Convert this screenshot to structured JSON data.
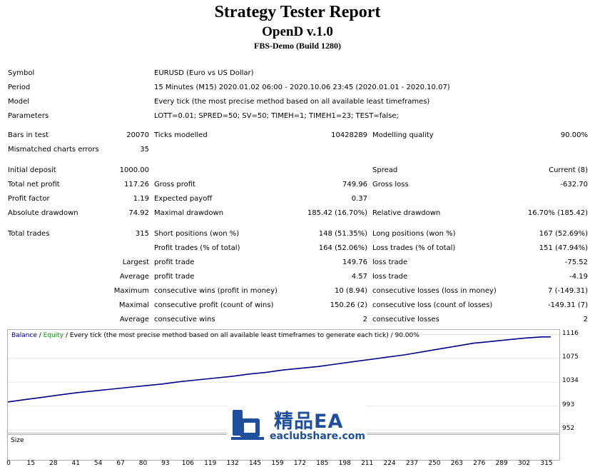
{
  "header": {
    "title": "Strategy Tester Report",
    "ea_name": "OpenD v.1.0",
    "build": "FBS-Demo (Build 1280)"
  },
  "info": {
    "symbol_label": "Symbol",
    "symbol_value": "EURUSD (Euro vs US Dollar)",
    "period_label": "Period",
    "period_value": "15 Minutes (M15) 2020.01.02 06:00 - 2020.10.06 23:45 (2020.01.01 - 2020.10.07)",
    "model_label": "Model",
    "model_value": "Every tick (the most precise method based on all available least timeframes)",
    "params_label": "Parameters",
    "params_value": "LOTT=0.01; SPRED=50; SV=50; TIMEH=1; TIMEH1=23; TEST=false;"
  },
  "stats": {
    "bars_label": "Bars in test",
    "bars_value": "20070",
    "ticks_label": "Ticks modelled",
    "ticks_value": "10428289",
    "quality_label": "Modelling quality",
    "quality_value": "90.00%",
    "mismatch_label": "Mismatched charts errors",
    "mismatch_value": "35",
    "deposit_label": "Initial deposit",
    "deposit_value": "1000.00",
    "spread_label": "Spread",
    "spread_value": "Current (8)",
    "netprofit_label": "Total net profit",
    "netprofit_value": "117.26",
    "grossprofit_label": "Gross profit",
    "grossprofit_value": "749.96",
    "grossloss_label": "Gross loss",
    "grossloss_value": "-632.70",
    "pf_label": "Profit factor",
    "pf_value": "1.19",
    "payoff_label": "Expected payoff",
    "payoff_value": "0.37",
    "absdd_label": "Absolute drawdown",
    "absdd_value": "74.92",
    "maxdd_label": "Maximal drawdown",
    "maxdd_value": "185.42 (16.70%)",
    "reldd_label": "Relative drawdown",
    "reldd_value": "16.70% (185.42)",
    "trades_label": "Total trades",
    "trades_value": "315",
    "short_label": "Short positions (won %)",
    "short_value": "148 (51.35%)",
    "long_label": "Long positions (won %)",
    "long_value": "167 (52.69%)",
    "ptrades_label": "Profit trades (% of total)",
    "ptrades_value": "164 (52.06%)",
    "ltrades_label": "Loss trades (% of total)",
    "ltrades_value": "151 (47.94%)",
    "largest_label": "Largest",
    "largest_profit_label": "profit trade",
    "largest_profit_value": "149.76",
    "largest_loss_label": "loss trade",
    "largest_loss_value": "-75.52",
    "average_label": "Average",
    "average_profit_label": "profit trade",
    "average_profit_value": "4.57",
    "average_loss_label": "loss trade",
    "average_loss_value": "-4.19",
    "maximum_label": "Maximum",
    "max_wins_label": "consecutive wins (profit in money)",
    "max_wins_value": "10 (8.94)",
    "max_losses_label": "consecutive losses (loss in money)",
    "max_losses_value": "7 (-149.31)",
    "maximal_label": "Maximal",
    "maximal_profit_label": "consecutive profit (count of wins)",
    "maximal_profit_value": "150.26 (2)",
    "maximal_loss_label": "consecutive loss (count of losses)",
    "maximal_loss_value": "-149.31 (7)",
    "avg2_label": "Average",
    "avg_wins_label": "consecutive wins",
    "avg_wins_value": "2",
    "avg_losses_label": "consecutive losses",
    "avg_losses_value": "2"
  },
  "chart": {
    "legend_balance": "Balance",
    "legend_sep1": " / ",
    "legend_equity": "Equity",
    "legend_rest": " / Every tick (the most precise method based on all available least timeframes to generate each tick) / 90.00%",
    "size_label": "Size",
    "balance_color": "#00008b",
    "equity_color": "#00a000",
    "size_bar_color": "#00a000"
  },
  "chart_data": {
    "type": "line",
    "title": "Balance / Equity / Every tick (the most precise method based on all available least timeframes to generate each tick) / 90.00%",
    "xlabel": "",
    "ylabel": "",
    "x_ticks": [
      "0",
      "15",
      "28",
      "41",
      "54",
      "67",
      "80",
      "93",
      "106",
      "119",
      "132",
      "145",
      "159",
      "172",
      "185",
      "198",
      "211",
      "224",
      "237",
      "250",
      "263",
      "276",
      "289",
      "302",
      "315"
    ],
    "y_ticks": [
      "1116",
      "1075",
      "1034",
      "993",
      "952"
    ],
    "xlim": [
      0,
      320
    ],
    "ylim": [
      947,
      1124
    ],
    "series": [
      {
        "name": "Balance",
        "x": [
          0,
          10,
          20,
          30,
          40,
          50,
          60,
          70,
          80,
          90,
          100,
          110,
          120,
          130,
          140,
          150,
          160,
          170,
          180,
          190,
          200,
          210,
          220,
          230,
          240,
          250,
          260,
          270,
          280,
          290,
          300,
          310,
          315
        ],
        "values": [
          1000,
          1004,
          1008,
          1012,
          1016,
          1019,
          1022,
          1025,
          1028,
          1031,
          1035,
          1038,
          1041,
          1044,
          1048,
          1051,
          1055,
          1058,
          1061,
          1065,
          1069,
          1073,
          1077,
          1081,
          1086,
          1091,
          1096,
          1101,
          1104,
          1107,
          1110,
          1112,
          1112
        ]
      }
    ]
  },
  "watermark": {
    "name": "精品EA",
    "url": "eaclubshare.com"
  }
}
